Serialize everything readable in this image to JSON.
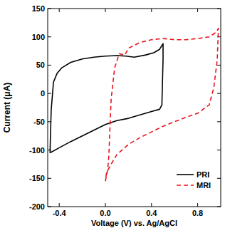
{
  "chart_data": {
    "type": "line",
    "x_label": "Voltage (V) vs. Ag/AgCl",
    "y_label": "Current (μA)",
    "xlim": [
      -0.5,
      1.0
    ],
    "ylim": [
      -200,
      150
    ],
    "xticks": [
      -0.4,
      {
        "value": 0,
        "label": "0.0"
      },
      0.4,
      0.8
    ],
    "yticks": [
      -200,
      -150,
      -100,
      -50,
      0,
      50,
      100,
      150
    ],
    "legend": "lower right",
    "series": [
      {
        "name": "PRI",
        "color": "#000000",
        "line_style": "solid",
        "x": [
          -0.48,
          -0.47,
          -0.45,
          -0.42,
          -0.38,
          -0.3,
          -0.2,
          -0.1,
          0.0,
          0.1,
          0.18,
          0.25,
          0.35,
          0.42,
          0.47,
          0.5,
          0.5,
          0.49,
          0.47,
          0.4,
          0.3,
          0.2,
          0.1,
          0.0,
          -0.1,
          -0.2,
          -0.3,
          -0.4,
          -0.48
        ],
        "values": [
          -105,
          -30,
          20,
          35,
          45,
          55,
          61,
          64,
          66,
          67,
          66,
          64,
          68,
          72,
          78,
          88,
          60,
          -20,
          -28,
          -32,
          -38,
          -44,
          -48,
          -55,
          -65,
          -75,
          -85,
          -96,
          -105
        ]
      },
      {
        "name": "MRI",
        "color": "#e8141c",
        "line_style": "dashed",
        "x": [
          0.0,
          0.02,
          0.03,
          0.05,
          0.08,
          0.12,
          0.17,
          0.2,
          0.3,
          0.4,
          0.5,
          0.6,
          0.7,
          0.8,
          0.9,
          0.96,
          0.98,
          0.97,
          0.94,
          0.9,
          0.8,
          0.7,
          0.6,
          0.5,
          0.4,
          0.3,
          0.2,
          0.1,
          0.05,
          0.01,
          0.0
        ],
        "values": [
          -155,
          -135,
          -110,
          -10,
          45,
          70,
          68,
          80,
          90,
          95,
          97,
          95,
          95,
          97,
          100,
          108,
          115,
          60,
          10,
          -20,
          -35,
          -42,
          -50,
          -58,
          -68,
          -78,
          -90,
          -108,
          -125,
          -140,
          -155
        ]
      }
    ]
  }
}
